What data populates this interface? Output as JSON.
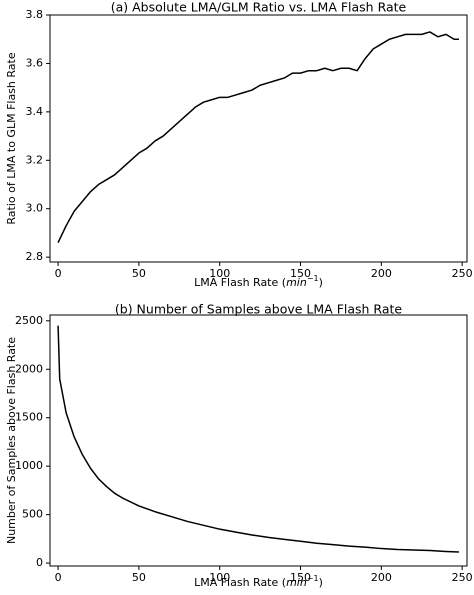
{
  "chart_data": [
    {
      "type": "line",
      "title": "(a) Absolute LMA/GLM Ratio vs. LMA Flash Rate",
      "xlabel": {
        "text": "LMA Flash Rate (",
        "unit": "min",
        "exponent": "−1",
        "close": ")"
      },
      "ylabel": "Ratio of LMA to GLM Flash Rate",
      "xlim": [
        -5,
        253
      ],
      "ylim": [
        2.78,
        3.8
      ],
      "xticks": [
        0,
        50,
        100,
        150,
        200,
        250
      ],
      "yticks": [
        {
          "value": 2.8,
          "label": "2.8"
        },
        {
          "value": 3.0,
          "label": "3.0"
        },
        {
          "value": 3.2,
          "label": "3.2"
        },
        {
          "value": 3.4,
          "label": "3.4"
        },
        {
          "value": 3.6,
          "label": "3.6"
        },
        {
          "value": 3.8,
          "label": "3.8"
        }
      ],
      "x": [
        0,
        5,
        10,
        15,
        20,
        25,
        30,
        35,
        40,
        45,
        50,
        55,
        60,
        65,
        70,
        75,
        80,
        85,
        90,
        95,
        100,
        105,
        110,
        115,
        120,
        125,
        130,
        135,
        140,
        145,
        150,
        155,
        160,
        165,
        170,
        175,
        180,
        185,
        190,
        195,
        200,
        205,
        210,
        215,
        220,
        225,
        230,
        235,
        240,
        245,
        248
      ],
      "series": [
        {
          "name": "ratio",
          "color": "#000000",
          "values": [
            2.86,
            2.93,
            2.99,
            3.03,
            3.07,
            3.1,
            3.12,
            3.14,
            3.17,
            3.2,
            3.23,
            3.25,
            3.28,
            3.3,
            3.33,
            3.36,
            3.39,
            3.42,
            3.44,
            3.45,
            3.46,
            3.46,
            3.47,
            3.48,
            3.49,
            3.51,
            3.52,
            3.53,
            3.54,
            3.56,
            3.56,
            3.57,
            3.57,
            3.58,
            3.57,
            3.58,
            3.58,
            3.57,
            3.62,
            3.66,
            3.68,
            3.7,
            3.71,
            3.72,
            3.72,
            3.72,
            3.73,
            3.71,
            3.72,
            3.7,
            3.7
          ]
        }
      ]
    },
    {
      "type": "line",
      "title": "(b) Number of Samples above LMA Flash Rate",
      "xlabel": {
        "text": "LMA Flash Rate (",
        "unit": "min",
        "exponent": "−1",
        "close": ")"
      },
      "ylabel": "Number of Samples above Flash Rate",
      "xlim": [
        -5,
        253
      ],
      "ylim": [
        -30,
        2560
      ],
      "xticks": [
        0,
        50,
        100,
        150,
        200,
        250
      ],
      "yticks": [
        0,
        500,
        1000,
        1500,
        2000,
        2500
      ],
      "x": [
        0,
        1,
        5,
        10,
        15,
        20,
        25,
        30,
        35,
        40,
        50,
        60,
        70,
        80,
        90,
        100,
        110,
        120,
        130,
        140,
        150,
        160,
        170,
        180,
        190,
        200,
        210,
        220,
        230,
        240,
        248
      ],
      "series": [
        {
          "name": "samples",
          "color": "#000000",
          "values": [
            2450,
            1900,
            1550,
            1300,
            1120,
            980,
            870,
            790,
            720,
            670,
            590,
            530,
            480,
            430,
            390,
            350,
            320,
            290,
            265,
            245,
            225,
            205,
            190,
            175,
            165,
            150,
            140,
            135,
            130,
            120,
            115
          ]
        }
      ]
    }
  ]
}
